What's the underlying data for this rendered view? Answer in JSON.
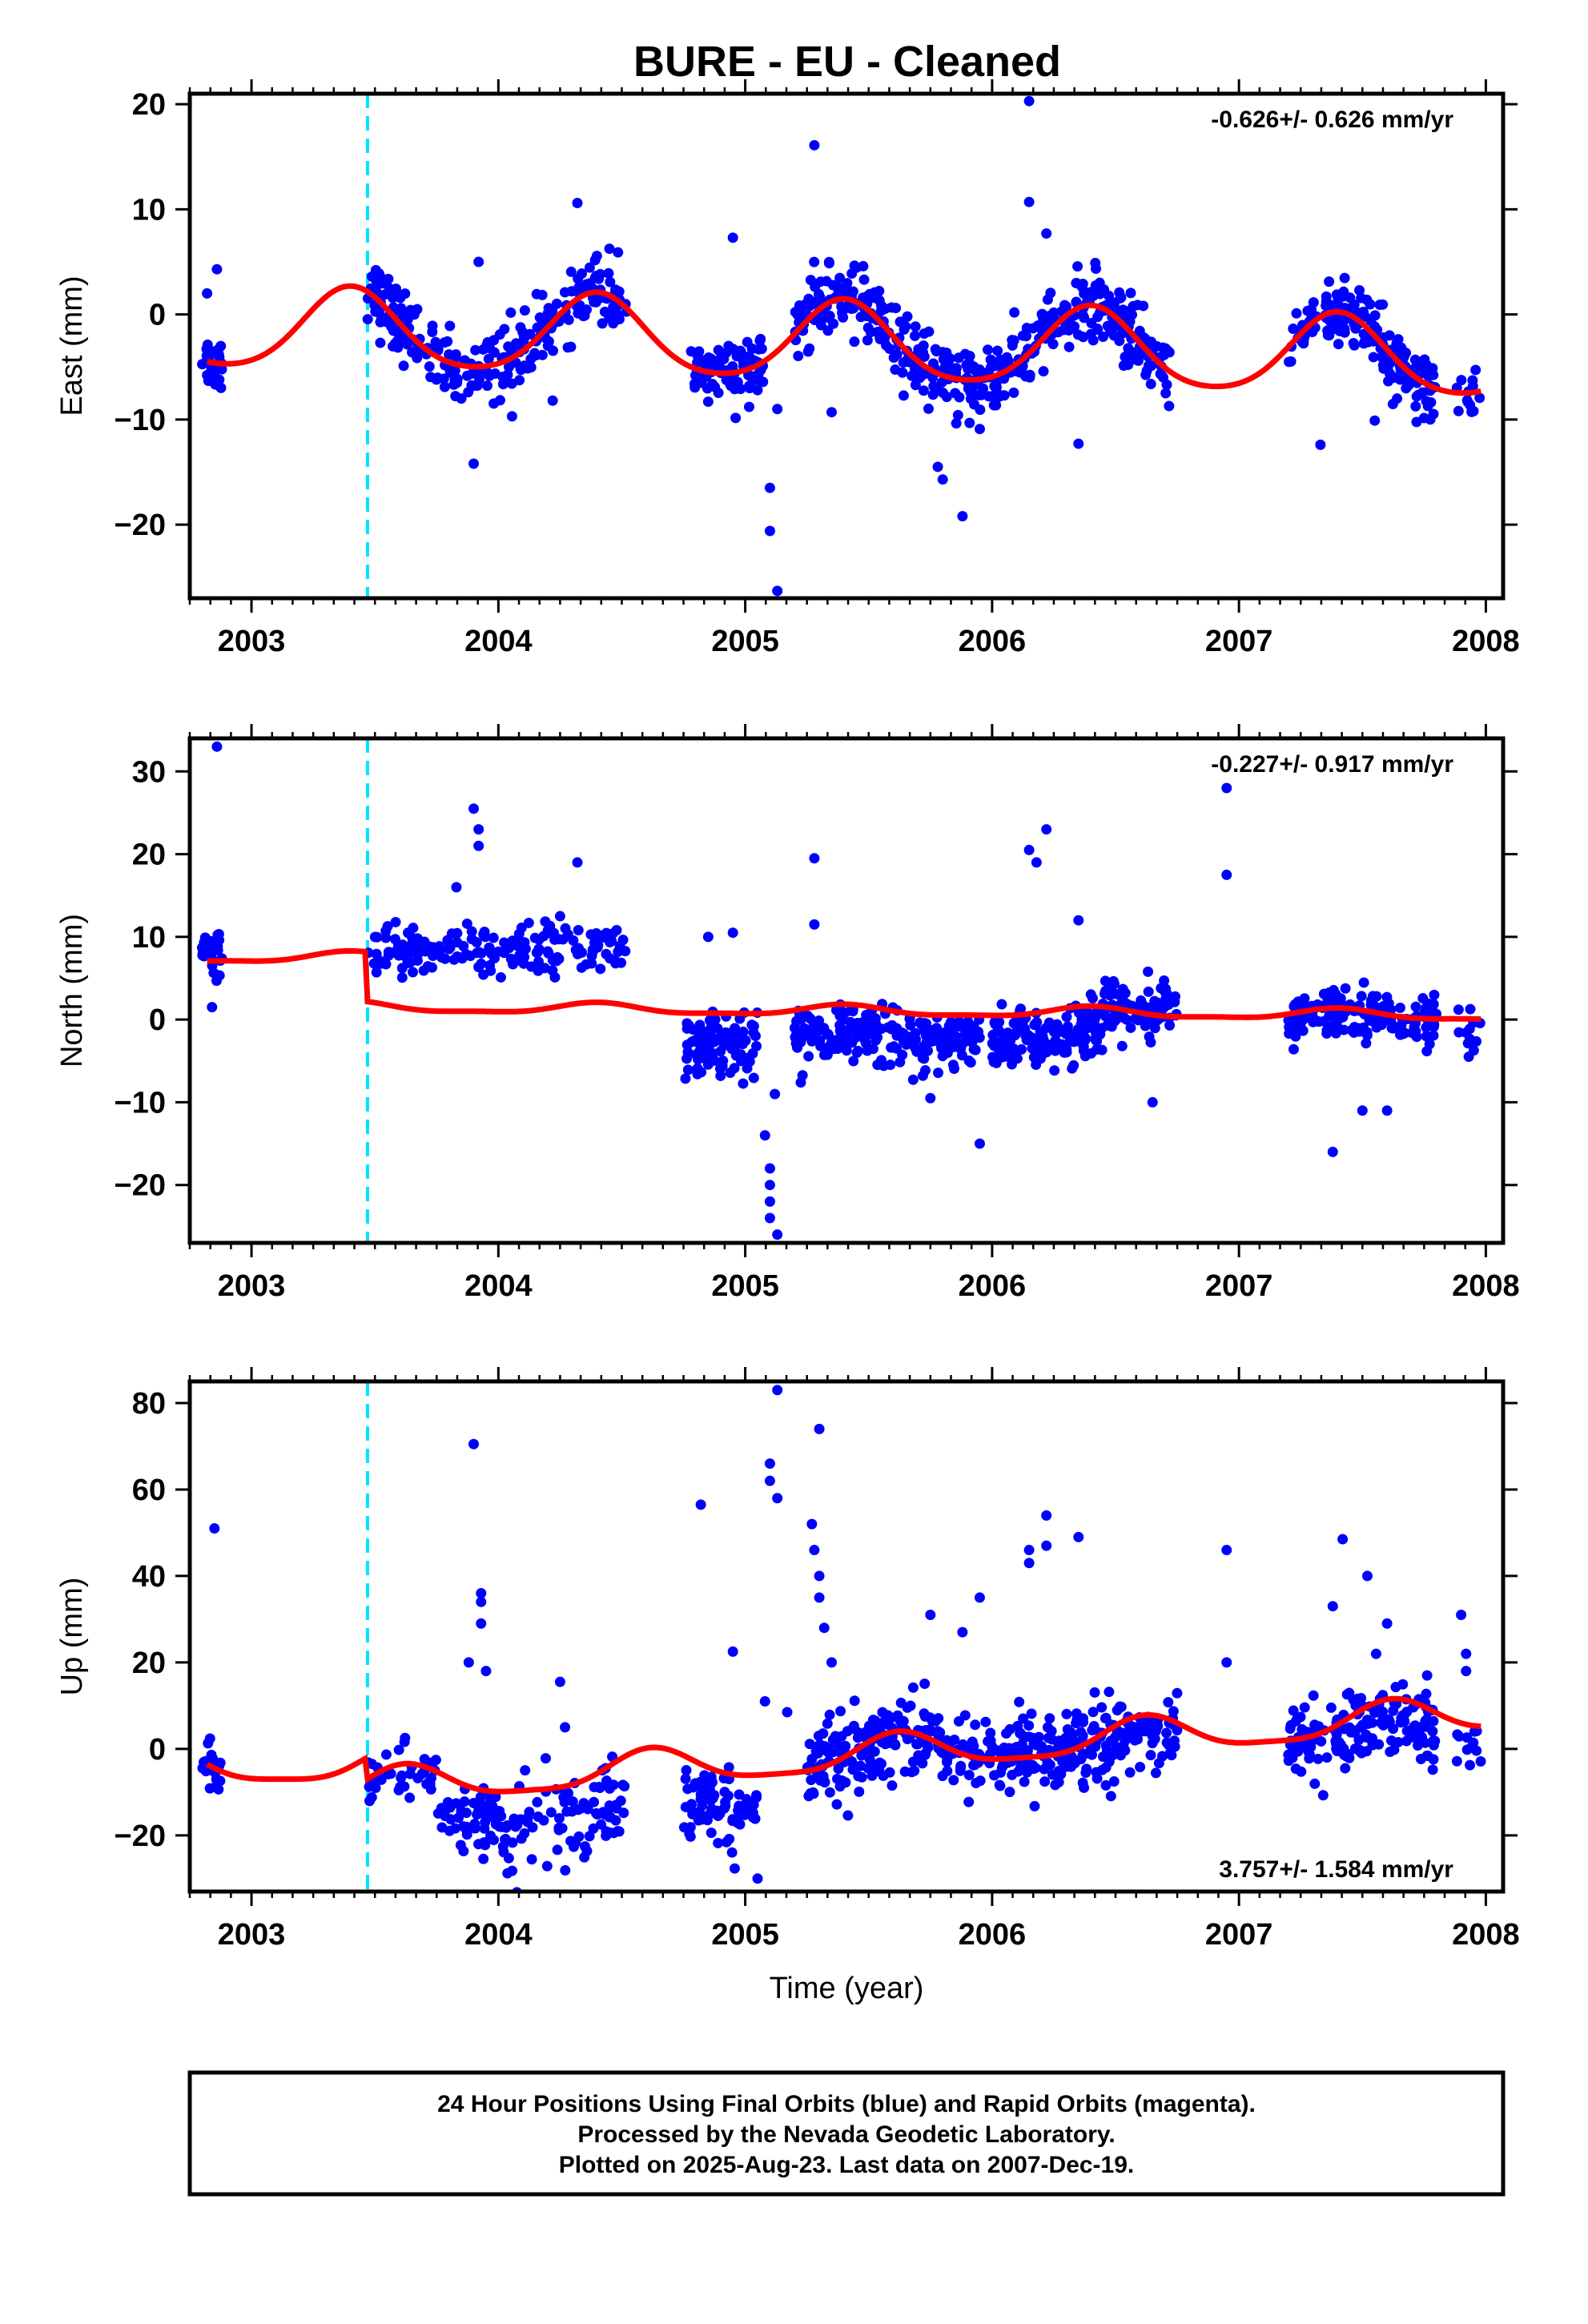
{
  "chart_data": [
    {
      "id": "east",
      "type": "scatter",
      "title": "BURE  - EU - Cleaned",
      "ylabel": "East (mm)",
      "xlabel": "",
      "xlim": [
        2002.75,
        2008.07
      ],
      "ylim": [
        -27,
        21
      ],
      "yticks": [
        -20,
        -10,
        0,
        10,
        20
      ],
      "xticks": [
        2003,
        2004,
        2005,
        2006,
        2007,
        2008
      ],
      "rate_text": "-0.626+/- 0.626 mm/yr",
      "rate_position": "top-right",
      "offset_epoch": 2003.47,
      "model": {
        "offsets": [
          -1.5,
          -1.5
        ],
        "slope_mm_yr": -0.626,
        "ref_epoch": 2003.47,
        "amp_annual": 3.7,
        "annual_phase_peak": 2003.4,
        "amp_semiannual": 0.5
      },
      "series": [
        {
          "name": "Final Orbits",
          "color": "#0000ff",
          "kind": "points",
          "clusters": [
            {
              "start": 2002.8,
              "end": 2002.88,
              "n": 28,
              "spread": 1.3
            },
            {
              "start": 2003.47,
              "end": 2003.62,
              "n": 60,
              "spread": 1.6
            },
            {
              "start": 2003.62,
              "end": 2004.05,
              "n": 90,
              "spread": 1.6
            },
            {
              "start": 2004.05,
              "end": 2004.52,
              "n": 120,
              "spread": 1.6
            },
            {
              "start": 2004.78,
              "end": 2005.08,
              "n": 80,
              "spread": 1.5
            },
            {
              "start": 2005.2,
              "end": 2005.95,
              "n": 220,
              "spread": 1.6
            },
            {
              "start": 2005.95,
              "end": 2006.72,
              "n": 230,
              "spread": 1.6
            },
            {
              "start": 2007.2,
              "end": 2007.8,
              "n": 170,
              "spread": 1.6
            },
            {
              "start": 2007.88,
              "end": 2007.98,
              "n": 12,
              "spread": 1.8
            }
          ],
          "outliers": [
            [
              2002.82,
              2.0
            ],
            [
              2002.86,
              4.3
            ],
            [
              2003.85,
              -8.0
            ],
            [
              2003.9,
              -14.2
            ],
            [
              2003.92,
              5.0
            ],
            [
              2004.22,
              -8.2
            ],
            [
              2004.32,
              10.6
            ],
            [
              2004.85,
              -8.3
            ],
            [
              2004.95,
              7.3
            ],
            [
              2005.05,
              -7.2
            ],
            [
              2005.1,
              -16.5
            ],
            [
              2005.1,
              -20.6
            ],
            [
              2005.13,
              -26.3
            ],
            [
              2005.13,
              -9.0
            ],
            [
              2005.28,
              16.1
            ],
            [
              2005.35,
              -9.3
            ],
            [
              2005.78,
              -14.5
            ],
            [
              2005.8,
              -15.7
            ],
            [
              2005.88,
              -19.2
            ],
            [
              2005.95,
              -10.9
            ],
            [
              2006.15,
              20.3
            ],
            [
              2006.15,
              10.7
            ],
            [
              2006.22,
              7.7
            ],
            [
              2006.35,
              -12.3
            ],
            [
              2007.33,
              -12.4
            ],
            [
              2007.55,
              -10.1
            ],
            [
              2007.72,
              -7.8
            ],
            [
              2007.95,
              -9.2
            ]
          ]
        },
        {
          "name": "Model",
          "color": "#ff0000",
          "kind": "line"
        }
      ]
    },
    {
      "id": "north",
      "type": "scatter",
      "ylabel": "North (mm)",
      "xlabel": "",
      "xlim": [
        2002.75,
        2008.07
      ],
      "ylim": [
        -27,
        34
      ],
      "yticks": [
        -20,
        -10,
        0,
        10,
        20,
        30
      ],
      "xticks": [
        2003,
        2004,
        2005,
        2006,
        2007,
        2008
      ],
      "rate_text": "-0.227+/- 0.917 mm/yr",
      "rate_position": "top-right",
      "offset_epoch": 2003.47,
      "model": {
        "offsets": [
          7.5,
          1.5
        ],
        "slope_mm_yr": -0.227,
        "ref_epoch": 2003.47,
        "amp_annual": 0.6,
        "annual_phase_peak": 2003.4,
        "amp_semiannual": 0.2
      },
      "series": [
        {
          "name": "Final Orbits",
          "color": "#0000ff",
          "kind": "points",
          "clusters": [
            {
              "start": 2002.8,
              "end": 2002.88,
              "n": 25,
              "spread": 1.8
            },
            {
              "start": 2003.47,
              "end": 2004.52,
              "n": 180,
              "spread": 1.6,
              "center": 8.0
            },
            {
              "start": 2004.75,
              "end": 2005.05,
              "n": 90,
              "spread": 1.8,
              "center": -3.0
            },
            {
              "start": 2005.2,
              "end": 2005.95,
              "n": 210,
              "spread": 1.7,
              "center": -2.0
            },
            {
              "start": 2006.0,
              "end": 2006.45,
              "n": 140,
              "spread": 1.8,
              "center": -2.0
            },
            {
              "start": 2006.45,
              "end": 2006.75,
              "n": 90,
              "spread": 1.8,
              "center": 1.0
            },
            {
              "start": 2007.2,
              "end": 2007.8,
              "n": 170,
              "spread": 1.6,
              "center": 0.5
            },
            {
              "start": 2007.88,
              "end": 2007.98,
              "n": 12,
              "spread": 2.2,
              "center": -2.0
            }
          ],
          "outliers": [
            [
              2002.86,
              33.0
            ],
            [
              2002.84,
              1.5
            ],
            [
              2003.9,
              25.5
            ],
            [
              2003.92,
              23.0
            ],
            [
              2003.92,
              21.0
            ],
            [
              2003.83,
              16.0
            ],
            [
              2004.32,
              19.0
            ],
            [
              2004.25,
              12.5
            ],
            [
              2004.85,
              10.0
            ],
            [
              2004.95,
              10.5
            ],
            [
              2005.08,
              -14.0
            ],
            [
              2005.1,
              -18.0
            ],
            [
              2005.1,
              -20.0
            ],
            [
              2005.1,
              -22.0
            ],
            [
              2005.1,
              -24.0
            ],
            [
              2005.13,
              -26.0
            ],
            [
              2005.12,
              -9.0
            ],
            [
              2005.28,
              19.5
            ],
            [
              2005.28,
              11.5
            ],
            [
              2005.75,
              -9.5
            ],
            [
              2005.95,
              -15.0
            ],
            [
              2006.15,
              20.5
            ],
            [
              2006.18,
              19.0
            ],
            [
              2006.22,
              23.0
            ],
            [
              2006.35,
              12.0
            ],
            [
              2006.65,
              -10.0
            ],
            [
              2006.95,
              28.0
            ],
            [
              2006.95,
              17.5
            ],
            [
              2007.38,
              -16.0
            ],
            [
              2007.5,
              -11.0
            ],
            [
              2007.6,
              -11.0
            ]
          ]
        },
        {
          "name": "Model",
          "color": "#ff0000",
          "kind": "line"
        }
      ]
    },
    {
      "id": "up",
      "type": "scatter",
      "ylabel": "Up (mm)",
      "xlabel": "Time (year)",
      "xlim": [
        2002.75,
        2008.07
      ],
      "ylim": [
        -33,
        85
      ],
      "yticks": [
        -20,
        0,
        20,
        40,
        60,
        80
      ],
      "xticks": [
        2003,
        2004,
        2005,
        2006,
        2007,
        2008
      ],
      "rate_text": "3.757+/- 1.584 mm/yr",
      "rate_position": "bottom-right",
      "offset_epoch": 2003.47,
      "model": {
        "offsets": [
          -4.0,
          -9.0
        ],
        "slope_mm_yr": 3.757,
        "ref_epoch": 2003.47,
        "amp_annual": 4.0,
        "annual_phase_peak": 2003.62,
        "amp_semiannual": 1.0
      },
      "series": [
        {
          "name": "Final Orbits",
          "color": "#0000ff",
          "kind": "points",
          "clusters": [
            {
              "start": 2002.8,
              "end": 2002.88,
              "n": 25,
              "spread": 3.0
            },
            {
              "start": 2003.47,
              "end": 2003.75,
              "n": 40,
              "spread": 3.5,
              "center": -6.0
            },
            {
              "start": 2003.75,
              "end": 2004.52,
              "n": 150,
              "spread": 5.0,
              "center": -18.0
            },
            {
              "start": 2004.75,
              "end": 2005.05,
              "n": 80,
              "spread": 4.0,
              "center": -14.0
            },
            {
              "start": 2005.25,
              "end": 2005.95,
              "n": 210,
              "spread": 4.5,
              "center": 3.0
            },
            {
              "start": 2005.95,
              "end": 2006.75,
              "n": 230,
              "spread": 4.5,
              "center": 0.0
            },
            {
              "start": 2007.2,
              "end": 2007.8,
              "n": 170,
              "spread": 4.5,
              "center": 5.0
            },
            {
              "start": 2007.88,
              "end": 2007.98,
              "n": 12,
              "spread": 4.0,
              "center": 0.0
            }
          ],
          "outliers": [
            [
              2002.85,
              51.0
            ],
            [
              2003.9,
              70.5
            ],
            [
              2003.93,
              36.0
            ],
            [
              2003.93,
              34.0
            ],
            [
              2003.93,
              29.0
            ],
            [
              2003.88,
              20.0
            ],
            [
              2003.95,
              18.0
            ],
            [
              2004.25,
              15.5
            ],
            [
              2004.27,
              5.0
            ],
            [
              2004.82,
              56.5
            ],
            [
              2004.95,
              22.5
            ],
            [
              2005.05,
              -30.0
            ],
            [
              2005.08,
              11.0
            ],
            [
              2005.1,
              66.0
            ],
            [
              2005.1,
              62.0
            ],
            [
              2005.13,
              58.0
            ],
            [
              2005.13,
              83.0
            ],
            [
              2005.17,
              8.5
            ],
            [
              2005.27,
              52.0
            ],
            [
              2005.28,
              46.0
            ],
            [
              2005.3,
              74.0
            ],
            [
              2005.3,
              40.0
            ],
            [
              2005.3,
              35.0
            ],
            [
              2005.32,
              28.0
            ],
            [
              2005.35,
              20.0
            ],
            [
              2005.75,
              31.0
            ],
            [
              2005.88,
              27.0
            ],
            [
              2005.95,
              35.0
            ],
            [
              2006.15,
              46.0
            ],
            [
              2006.15,
              43.0
            ],
            [
              2006.22,
              54.0
            ],
            [
              2006.22,
              47.0
            ],
            [
              2006.35,
              49.0
            ],
            [
              2006.95,
              46.0
            ],
            [
              2006.95,
              20.0
            ],
            [
              2007.38,
              33.0
            ],
            [
              2007.42,
              48.5
            ],
            [
              2007.52,
              40.0
            ],
            [
              2007.6,
              29.0
            ],
            [
              2007.9,
              31.0
            ],
            [
              2007.92,
              22.0
            ],
            [
              2007.92,
              18.0
            ]
          ]
        },
        {
          "name": "Model",
          "color": "#ff0000",
          "kind": "line"
        }
      ]
    }
  ],
  "footer": {
    "line1": "24 Hour Positions Using Final Orbits (blue) and Rapid Orbits (magenta).",
    "line2": "Processed by the Nevada Geodetic Laboratory.",
    "line3": "Plotted on 2025-Aug-23. Last data on 2007-Dec-19."
  },
  "colors": {
    "points": "#0000ff",
    "model": "#ff0000",
    "offset_marker": "#00e5ff",
    "axis": "#000000"
  }
}
